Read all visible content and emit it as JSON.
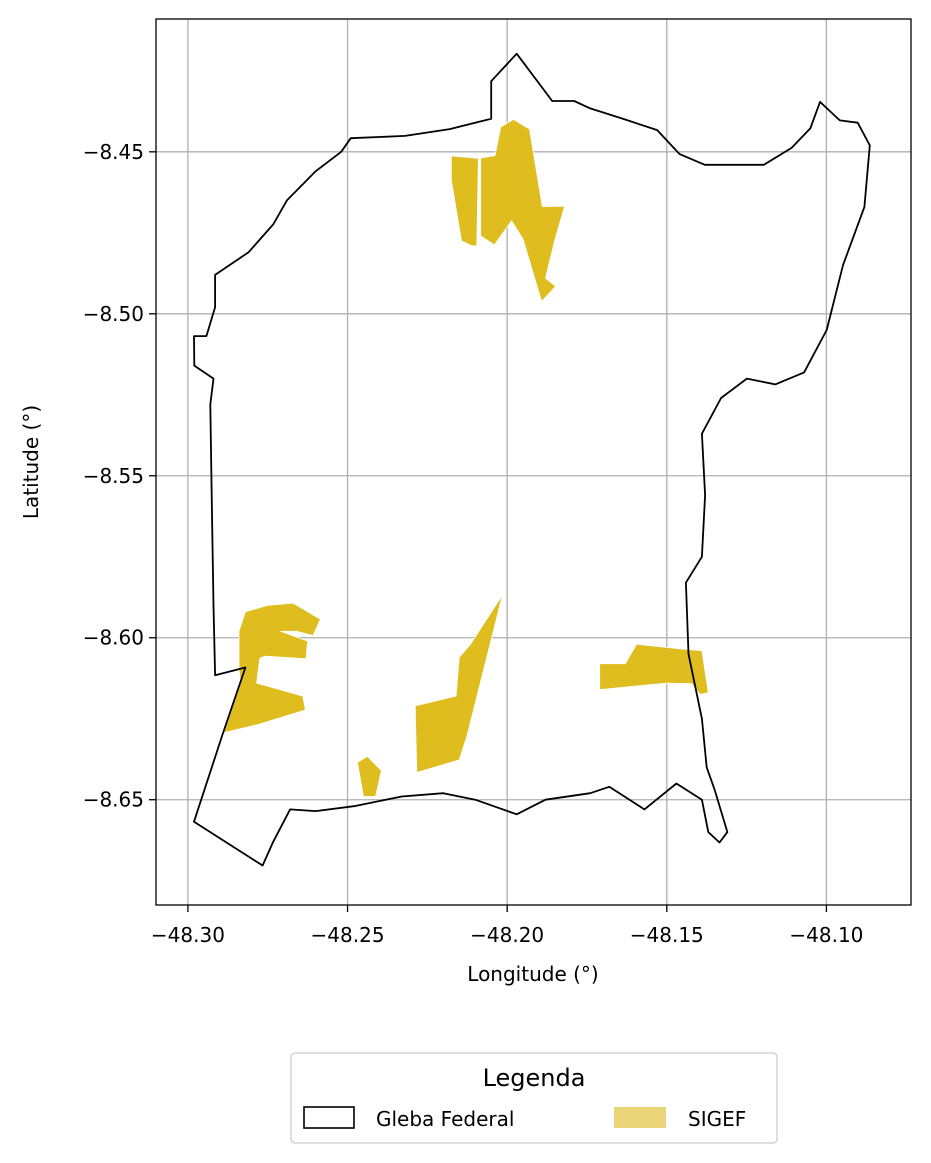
{
  "chart_data": {
    "type": "map",
    "xlabel": "Longitude (°)",
    "ylabel": "Latitude (°)",
    "xlim": [
      -48.31,
      -48.0735
    ],
    "ylim": [
      -8.6825,
      -8.409
    ],
    "xticks": [
      -48.3,
      -48.25,
      -48.2,
      -48.15,
      -48.1
    ],
    "yticks": [
      -8.45,
      -8.5,
      -8.55,
      -8.6,
      -8.65
    ],
    "xtick_labels": [
      "−48.30",
      "−48.25",
      "−48.20",
      "−48.15",
      "−48.10"
    ],
    "ytick_labels": [
      "−8.45",
      "−8.50",
      "−8.55",
      "−8.60",
      "−8.65"
    ],
    "grid": true,
    "colors": {
      "gleba_edge": "#000000",
      "sigef_fill": "#dfbd1f",
      "sigef_legend": "#ead47a",
      "grid": "#b0b0b0"
    },
    "legend": {
      "title": "Legenda",
      "placement": "bottom-center",
      "entries": [
        {
          "label": "Gleba Federal",
          "style": "outline"
        },
        {
          "label": "SIGEF",
          "style": "fill"
        }
      ]
    },
    "gleba_federal": [
      [
        -48.197,
        -8.4197
      ],
      [
        -48.1859,
        -8.4343
      ],
      [
        -48.179,
        -8.4343
      ],
      [
        -48.174,
        -8.4366
      ],
      [
        -48.164,
        -8.4397
      ],
      [
        -48.153,
        -8.4433
      ],
      [
        -48.146,
        -8.4507
      ],
      [
        -48.1381,
        -8.454
      ],
      [
        -48.13,
        -8.454
      ],
      [
        -48.1196,
        -8.454
      ],
      [
        -48.1109,
        -8.4488
      ],
      [
        -48.105,
        -8.4427
      ],
      [
        -48.102,
        -8.4346
      ],
      [
        -48.0958,
        -8.4403
      ],
      [
        -48.0902,
        -8.441
      ],
      [
        -48.0864,
        -8.448
      ],
      [
        -48.0881,
        -8.467
      ],
      [
        -48.0948,
        -8.485
      ],
      [
        -48.0999,
        -8.505
      ],
      [
        -48.107,
        -8.5181
      ],
      [
        -48.116,
        -8.5218
      ],
      [
        -48.1249,
        -8.52
      ],
      [
        -48.133,
        -8.526
      ],
      [
        -48.139,
        -8.537
      ],
      [
        -48.138,
        -8.556
      ],
      [
        -48.139,
        -8.575
      ],
      [
        -48.144,
        -8.583
      ],
      [
        -48.1432,
        -8.605
      ],
      [
        -48.139,
        -8.625
      ],
      [
        -48.1375,
        -8.64
      ],
      [
        -48.135,
        -8.647
      ],
      [
        -48.131,
        -8.66
      ],
      [
        -48.1335,
        -8.6632
      ],
      [
        -48.137,
        -8.66
      ],
      [
        -48.139,
        -8.65
      ],
      [
        -48.147,
        -8.645
      ],
      [
        -48.157,
        -8.653
      ],
      [
        -48.168,
        -8.646
      ],
      [
        -48.174,
        -8.648
      ],
      [
        -48.188,
        -8.65
      ],
      [
        -48.197,
        -8.6545
      ],
      [
        -48.21,
        -8.65
      ],
      [
        -48.22,
        -8.648
      ],
      [
        -48.233,
        -8.649
      ],
      [
        -48.248,
        -8.652
      ],
      [
        -48.26,
        -8.6535
      ],
      [
        -48.268,
        -8.653
      ],
      [
        -48.2733,
        -8.663
      ],
      [
        -48.2766,
        -8.6703
      ],
      [
        -48.2835,
        -8.666
      ],
      [
        -48.2981,
        -8.6568
      ],
      [
        -48.2892,
        -8.63
      ],
      [
        -48.282,
        -8.6092
      ],
      [
        -48.2915,
        -8.6116
      ],
      [
        -48.292,
        -8.59
      ],
      [
        -48.2925,
        -8.56
      ],
      [
        -48.293,
        -8.528
      ],
      [
        -48.292,
        -8.52
      ],
      [
        -48.298,
        -8.516
      ],
      [
        -48.2981,
        -8.5069
      ],
      [
        -48.2942,
        -8.5069
      ],
      [
        -48.2915,
        -8.498
      ],
      [
        -48.2915,
        -8.488
      ],
      [
        -48.281,
        -8.481
      ],
      [
        -48.2733,
        -8.4724
      ],
      [
        -48.269,
        -8.465
      ],
      [
        -48.26,
        -8.456
      ],
      [
        -48.252,
        -8.45
      ],
      [
        -48.249,
        -8.4458
      ],
      [
        -48.232,
        -8.4451
      ],
      [
        -48.218,
        -8.443
      ],
      [
        -48.205,
        -8.4398
      ],
      [
        -48.205,
        -8.4282
      ]
    ],
    "sigef": [
      [
        [
          -48.2175,
          -8.4513
        ],
        [
          -48.209,
          -8.452
        ],
        [
          -48.2095,
          -8.479
        ],
        [
          -48.211,
          -8.479
        ],
        [
          -48.2143,
          -8.4775
        ],
        [
          -48.2175,
          -8.4587
        ]
      ],
      [
        [
          -48.2083,
          -8.4519
        ],
        [
          -48.2038,
          -8.4512
        ],
        [
          -48.202,
          -8.4423
        ],
        [
          -48.198,
          -8.44
        ],
        [
          -48.193,
          -8.443
        ],
        [
          -48.189,
          -8.4669
        ],
        [
          -48.182,
          -8.4668
        ],
        [
          -48.185,
          -8.477
        ],
        [
          -48.188,
          -8.489
        ],
        [
          -48.1848,
          -8.4915
        ],
        [
          -48.1892,
          -8.4962
        ],
        [
          -48.195,
          -8.477
        ],
        [
          -48.1986,
          -8.4713
        ],
        [
          -48.204,
          -8.4787
        ],
        [
          -48.2083,
          -8.476
        ]
      ],
      [
        [
          -48.284,
          -8.598
        ],
        [
          -48.282,
          -8.592
        ],
        [
          -48.275,
          -8.59
        ],
        [
          -48.267,
          -8.5893
        ],
        [
          -48.2585,
          -8.5943
        ],
        [
          -48.2608,
          -8.5993
        ],
        [
          -48.266,
          -8.598
        ],
        [
          -48.271,
          -8.598
        ],
        [
          -48.2625,
          -8.601
        ],
        [
          -48.263,
          -8.6065
        ],
        [
          -48.2757,
          -8.6057
        ],
        [
          -48.2775,
          -8.6063
        ],
        [
          -48.2785,
          -8.614
        ],
        [
          -48.264,
          -8.618
        ],
        [
          -48.2632,
          -8.6223
        ],
        [
          -48.2788,
          -8.627
        ],
        [
          -48.2888,
          -8.6293
        ],
        [
          -48.2835,
          -8.614
        ],
        [
          -48.284,
          -8.61
        ],
        [
          -48.284,
          -8.6045
        ]
      ],
      [
        [
          -48.2015,
          -8.5868
        ],
        [
          -48.2115,
          -8.602
        ],
        [
          -48.215,
          -8.606
        ],
        [
          -48.216,
          -8.618
        ],
        [
          -48.2288,
          -8.621
        ],
        [
          -48.2283,
          -8.6416
        ],
        [
          -48.215,
          -8.6377
        ],
        [
          -48.2125,
          -8.63
        ]
      ],
      [
        [
          -48.171,
          -8.608
        ],
        [
          -48.163,
          -8.608
        ],
        [
          -48.1595,
          -8.602
        ],
        [
          -48.145,
          -8.6035
        ],
        [
          -48.139,
          -8.604
        ],
        [
          -48.137,
          -8.617
        ],
        [
          -48.1395,
          -8.6175
        ],
        [
          -48.1423,
          -8.6142
        ],
        [
          -48.15,
          -8.614
        ],
        [
          -48.171,
          -8.616
        ]
      ],
      [
        [
          -48.2469,
          -8.6385
        ],
        [
          -48.2438,
          -8.6366
        ],
        [
          -48.2394,
          -8.641
        ],
        [
          -48.2412,
          -8.649
        ],
        [
          -48.245,
          -8.649
        ]
      ]
    ]
  }
}
